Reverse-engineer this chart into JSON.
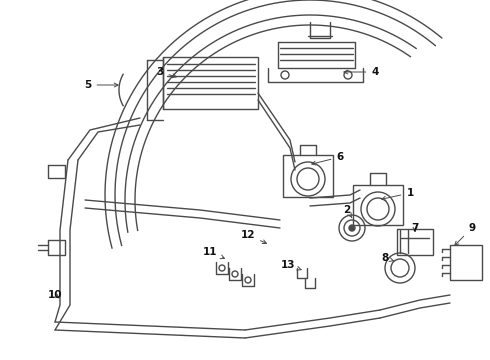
{
  "bg_color": "#ffffff",
  "line_color": "#4a4a4a",
  "label_color": "#111111",
  "lw": 1.0,
  "fig_w": 4.9,
  "fig_h": 3.6,
  "dpi": 100
}
